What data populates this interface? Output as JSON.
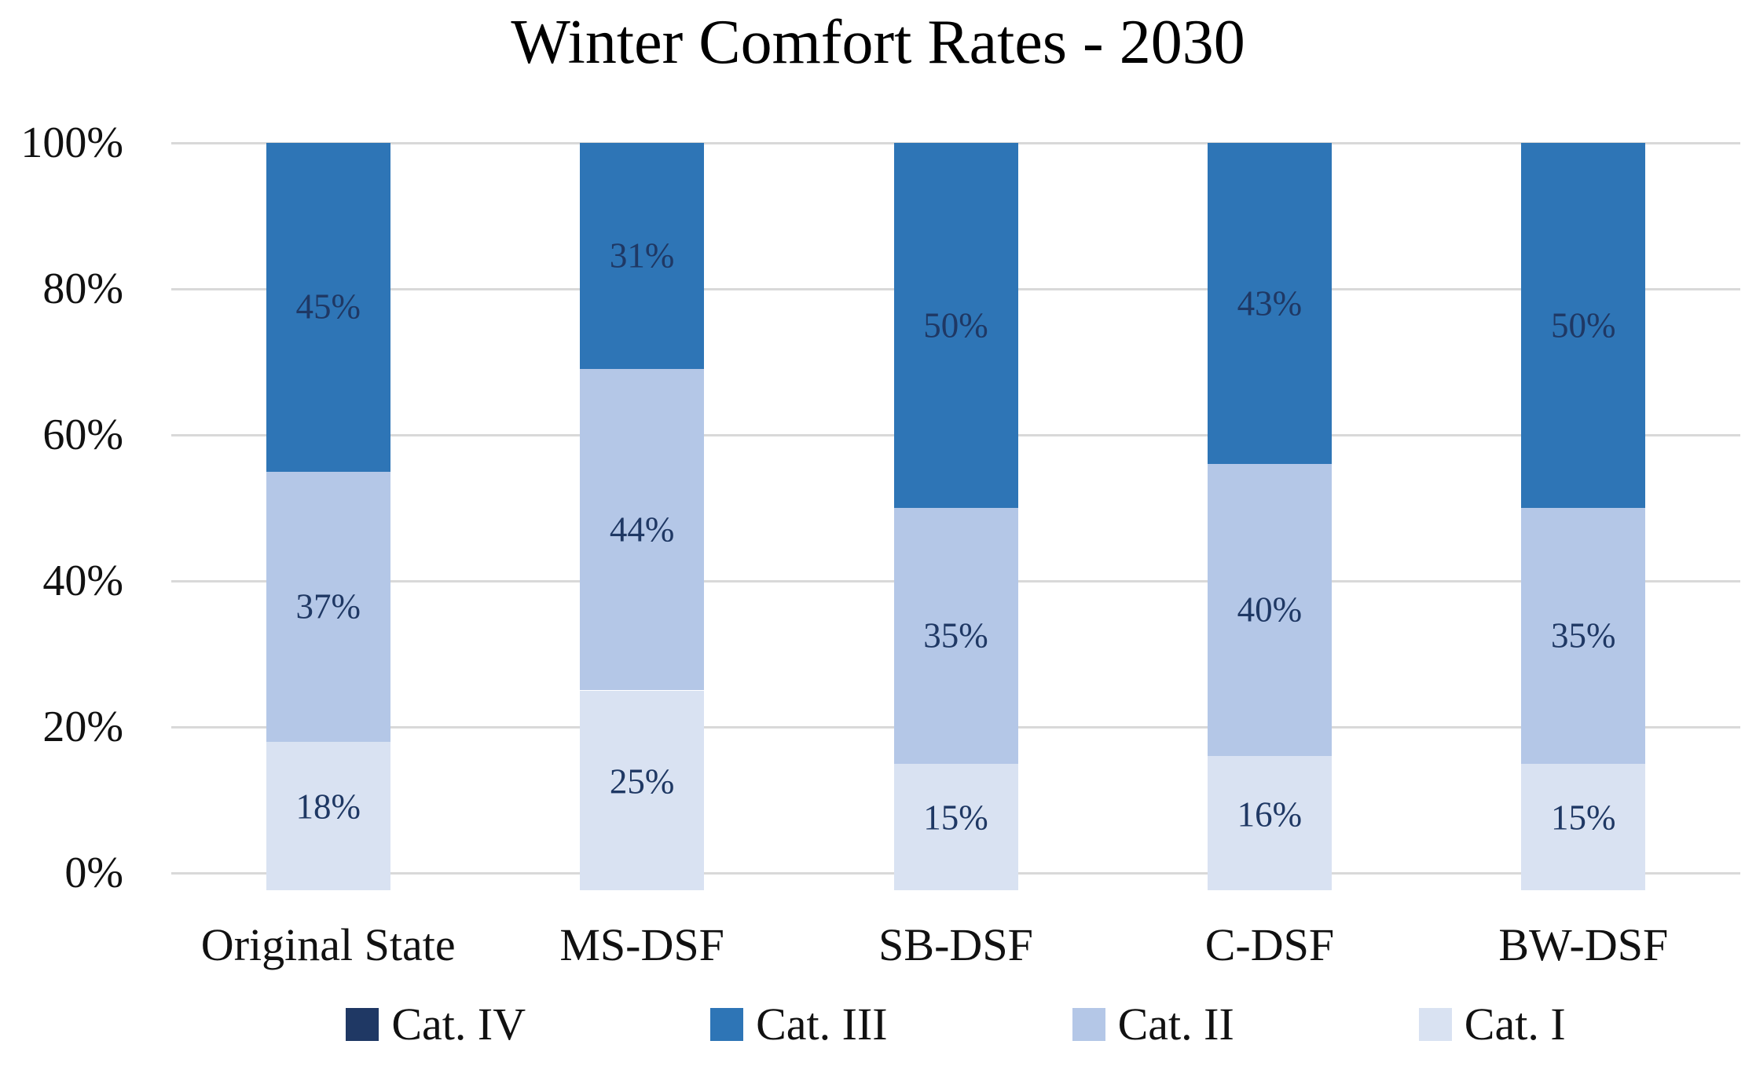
{
  "title": "Winter Comfort Rates - 2030",
  "chart_data": {
    "type": "bar",
    "variant": "stacked-column-percent",
    "title": "Winter Comfort Rates - 2030",
    "categories": [
      "Original State",
      "MS-DSF",
      "SB-DSF",
      "C-DSF",
      "BW-DSF"
    ],
    "series": [
      {
        "name": "Cat. IV",
        "color": "#1F3864",
        "values": [
          0,
          0,
          0,
          0,
          0
        ]
      },
      {
        "name": "Cat. III",
        "color": "#2E75B6",
        "values": [
          45,
          31,
          50,
          43,
          50
        ]
      },
      {
        "name": "Cat. II",
        "color": "#B4C7E7",
        "values": [
          37,
          44,
          35,
          40,
          35
        ]
      },
      {
        "name": "Cat. I",
        "color": "#D9E2F2",
        "values": [
          18,
          25,
          15,
          16,
          15
        ]
      }
    ],
    "y_axis": {
      "min": 0,
      "max": 100,
      "unit": "%",
      "ticks": [
        {
          "label": "100%",
          "value": 100
        },
        {
          "label": "80%",
          "value": 80
        },
        {
          "label": "60%",
          "value": 60
        },
        {
          "label": "40%",
          "value": 40
        },
        {
          "label": "20%",
          "value": 20
        },
        {
          "label": "0%",
          "value": 0
        }
      ]
    },
    "data_labels": {
      "suffix": "%",
      "color": "#1F3864",
      "show_zero": false
    },
    "legend": {
      "position": "bottom",
      "items": [
        "Cat. IV",
        "Cat. III",
        "Cat. II",
        "Cat. I"
      ]
    },
    "grid": {
      "show": true,
      "color": "#D9D9D9"
    }
  }
}
